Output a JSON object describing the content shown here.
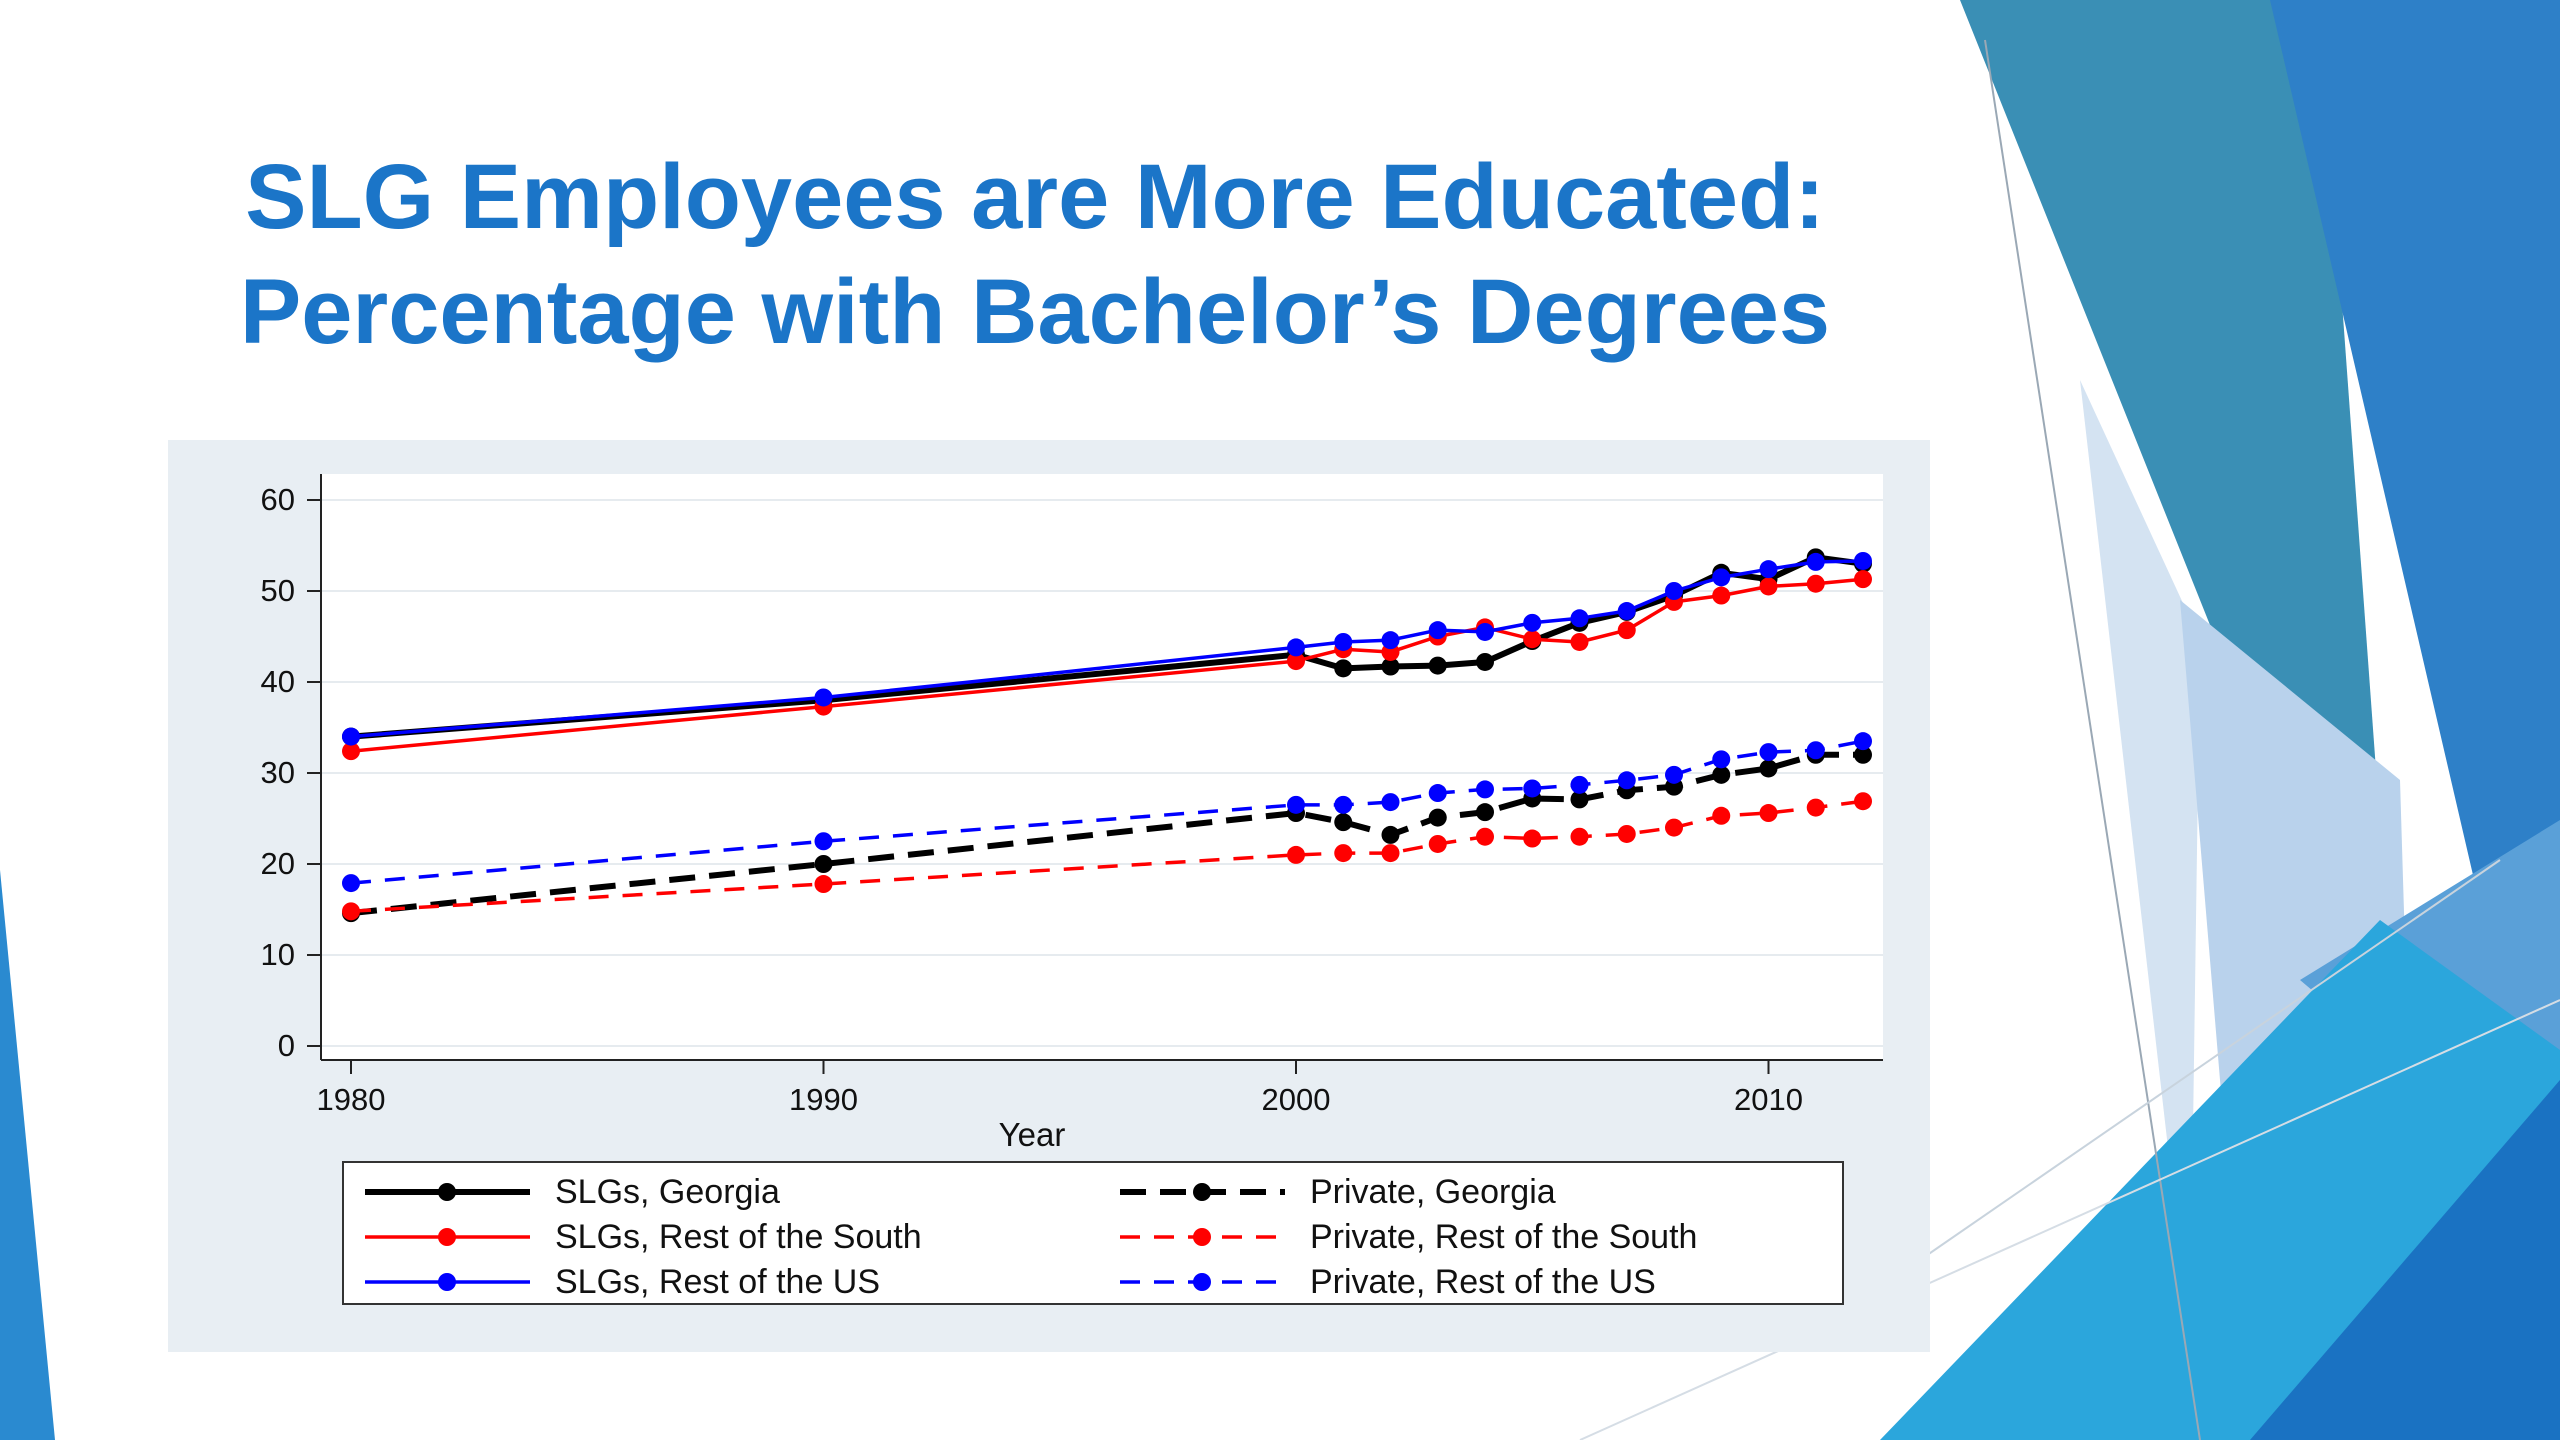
{
  "slide": {
    "title_line1": "SLG Employees are More Educated:",
    "title_line2": "Percentage with Bachelor’s Degrees"
  },
  "colors": {
    "title": "#1b75c8",
    "georgia": "#000000",
    "rest_of_south": "#ff0000",
    "rest_of_us": "#0000ff",
    "panel_bg": "#e8eef3"
  },
  "chart_data": {
    "type": "line",
    "xlabel": "Year",
    "ylabel": "",
    "xlim": [
      1980,
      2012
    ],
    "ylim": [
      0,
      60
    ],
    "xticks": [
      1980,
      1990,
      2000,
      2010
    ],
    "yticks": [
      0,
      10,
      20,
      30,
      40,
      50,
      60
    ],
    "grid": true,
    "legend_position": "bottom",
    "x": [
      1980,
      1990,
      2000,
      2001,
      2002,
      2003,
      2004,
      2005,
      2006,
      2007,
      2008,
      2009,
      2010,
      2011,
      2012
    ],
    "series": [
      {
        "name": "SLGs, Georgia",
        "color": "#000000",
        "dash": "solid",
        "values": [
          34.0,
          38.0,
          43.0,
          41.5,
          41.7,
          41.8,
          42.2,
          44.5,
          46.5,
          47.7,
          49.5,
          52.0,
          51.3,
          53.7,
          53.0
        ]
      },
      {
        "name": "SLGs, Rest of the South",
        "color": "#ff0000",
        "dash": "solid",
        "values": [
          32.4,
          37.3,
          42.3,
          43.6,
          43.3,
          45.0,
          46.0,
          44.7,
          44.4,
          45.7,
          48.8,
          49.5,
          50.5,
          50.8,
          51.3
        ]
      },
      {
        "name": "SLGs, Rest of the US",
        "color": "#0000ff",
        "dash": "solid",
        "values": [
          34.0,
          38.3,
          43.8,
          44.4,
          44.6,
          45.7,
          45.5,
          46.5,
          47.0,
          47.8,
          50.0,
          51.5,
          52.4,
          53.2,
          53.3
        ]
      },
      {
        "name": "Private, Georgia",
        "color": "#000000",
        "dash": "dash",
        "values": [
          14.6,
          20.0,
          25.6,
          24.6,
          23.2,
          25.1,
          25.7,
          27.2,
          27.1,
          28.1,
          28.5,
          29.8,
          30.5,
          32.0,
          32.0
        ]
      },
      {
        "name": "Private, Rest of the South",
        "color": "#ff0000",
        "dash": "dash",
        "values": [
          14.8,
          17.8,
          21.0,
          21.2,
          21.2,
          22.2,
          23.0,
          22.8,
          23.0,
          23.3,
          24.0,
          25.3,
          25.6,
          26.2,
          26.9
        ]
      },
      {
        "name": "Private, Rest of the US",
        "color": "#0000ff",
        "dash": "dash",
        "values": [
          17.9,
          22.5,
          26.5,
          26.5,
          26.8,
          27.8,
          28.2,
          28.3,
          28.7,
          29.2,
          29.8,
          31.5,
          32.3,
          32.5,
          33.5
        ]
      }
    ]
  }
}
